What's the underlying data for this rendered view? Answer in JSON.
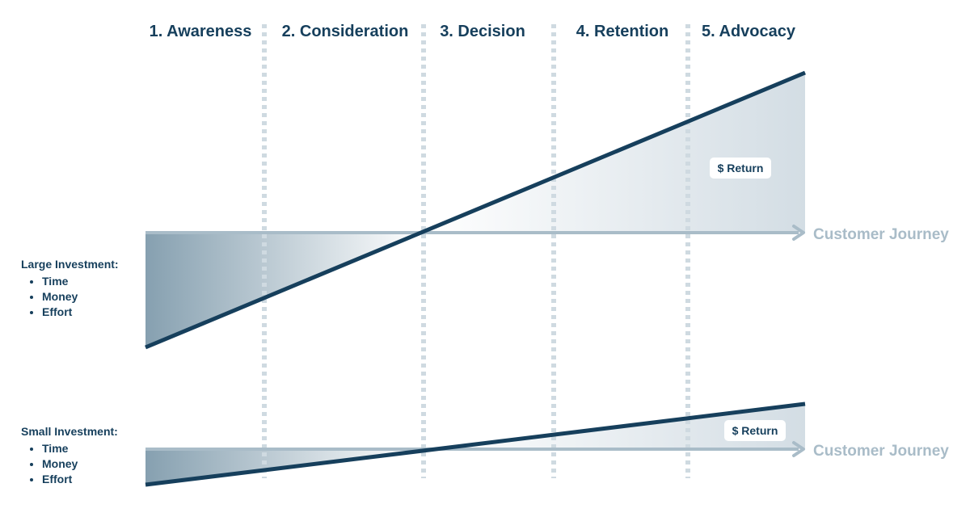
{
  "stages": [
    {
      "label": "1. Awareness"
    },
    {
      "label": "2. Consideration"
    },
    {
      "label": "3. Decision"
    },
    {
      "label": "4. Retention"
    },
    {
      "label": "5. Advocacy"
    }
  ],
  "panels": [
    {
      "investment_label": "Large Investment:",
      "items": [
        "Time",
        "Money",
        "Effort"
      ],
      "axis_label": "Customer Journey",
      "return_label": "$ Return"
    },
    {
      "investment_label": "Small Investment:",
      "items": [
        "Time",
        "Money",
        "Effort"
      ],
      "axis_label": "Customer Journey",
      "return_label": "$ Return"
    }
  ],
  "colors": {
    "dark": "#163f5c",
    "axis": "#a9bcc8",
    "divider": "#cfdae1",
    "fill_dark": "#86a0b0",
    "fill_light": "#dfe6eb"
  }
}
